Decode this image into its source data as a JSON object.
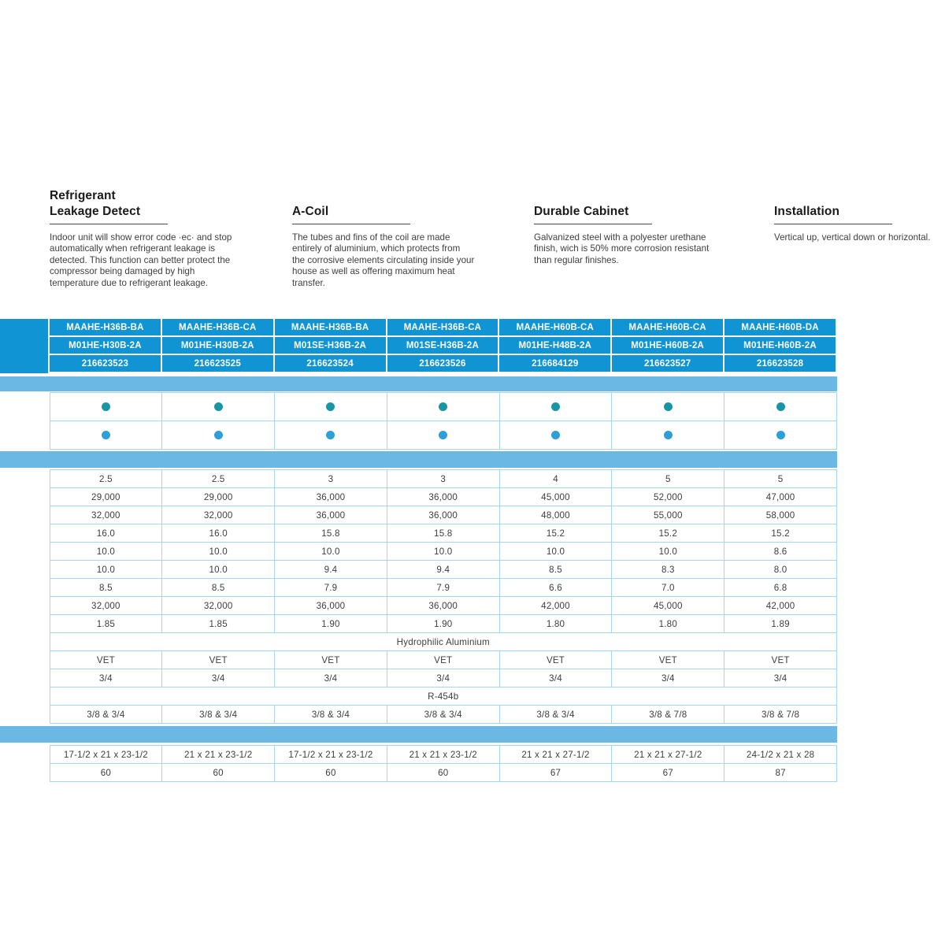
{
  "colors": {
    "header_blue": "#1094D4",
    "band_blue": "#6CB8E4",
    "grid_border": "#A8D4EE",
    "dot_teal": "#1896A6",
    "dot_blue": "#2E9FD9",
    "text_dark": "#3E3E3E"
  },
  "features": [
    {
      "title": "Refrigerant\nLeakage Detect",
      "body": "Indoor unit will show error code ·ec· and stop automatically when refrigerant leakage is detected. This function can better protect the compressor being damaged by high temperature due to refrigerant leakage."
    },
    {
      "title": "A-Coil",
      "body": "The tubes and fins of the coil are made entirely of aluminium, which protects from the corrosive elements circulating inside your house as well as offering maximum heat transfer."
    },
    {
      "title": "Durable Cabinet",
      "body": "Galvanized steel with a polyester urethane finish, wich is 50% more corrosion resistant than regular finishes."
    },
    {
      "title": "Installation",
      "body": "Vertical up, vertical down or horizontal."
    }
  ],
  "table": {
    "columns": [
      {
        "model": "MAAHE-H36B-BA",
        "coil": "M01HE-H30B-2A",
        "sku": "216623523"
      },
      {
        "model": "MAAHE-H36B-CA",
        "coil": "M01HE-H30B-2A",
        "sku": "216623525"
      },
      {
        "model": "MAAHE-H36B-BA",
        "coil": "M01SE-H36B-2A",
        "sku": "216623524"
      },
      {
        "model": "MAAHE-H36B-CA",
        "coil": "M01SE-H36B-2A",
        "sku": "216623526"
      },
      {
        "model": "MAAHE-H60B-CA",
        "coil": "M01HE-H48B-2A",
        "sku": "216684129"
      },
      {
        "model": "MAAHE-H60B-CA",
        "coil": "M01HE-H60B-2A",
        "sku": "216623527"
      },
      {
        "model": "MAAHE-H60B-DA",
        "coil": "M01HE-H60B-2A",
        "sku": "216623528"
      }
    ],
    "dot_rows": [
      {
        "color": "#1896A6"
      },
      {
        "color": "#2E9FD9"
      }
    ],
    "spec_rows": [
      [
        "2.5",
        "2.5",
        "3",
        "3",
        "4",
        "5",
        "5"
      ],
      [
        "29,000",
        "29,000",
        "36,000",
        "36,000",
        "45,000",
        "52,000",
        "47,000"
      ],
      [
        "32,000",
        "32,000",
        "36,000",
        "36,000",
        "48,000",
        "55,000",
        "58,000"
      ],
      [
        "16.0",
        "16.0",
        "15.8",
        "15.8",
        "15.2",
        "15.2",
        "15.2"
      ],
      [
        "10.0",
        "10.0",
        "10.0",
        "10.0",
        "10.0",
        "10.0",
        "8.6"
      ],
      [
        "10.0",
        "10.0",
        "9.4",
        "9.4",
        "8.5",
        "8.3",
        "8.0"
      ],
      [
        "8.5",
        "8.5",
        "7.9",
        "7.9",
        "6.6",
        "7.0",
        "6.8"
      ],
      [
        "32,000",
        "32,000",
        "36,000",
        "36,000",
        "42,000",
        "45,000",
        "42,000"
      ],
      [
        "1.85",
        "1.85",
        "1.90",
        "1.90",
        "1.80",
        "1.80",
        "1.89"
      ]
    ],
    "merged_coil_fin": "Hydrophilic Aluminium",
    "mid_rows": [
      [
        "VET",
        "VET",
        "VET",
        "VET",
        "VET",
        "VET",
        "VET"
      ],
      [
        "3/4",
        "3/4",
        "3/4",
        "3/4",
        "3/4",
        "3/4",
        "3/4"
      ]
    ],
    "merged_refrigerant_type": "R-454b",
    "line_set_row": [
      "3/8 & 3/4",
      "3/8 & 3/4",
      "3/8 & 3/4",
      "3/8 & 3/4",
      "3/8 & 3/4",
      "3/8 & 7/8",
      "3/8 & 7/8"
    ],
    "dims_row": [
      "17-1/2 x 21 x 23-1/2",
      "21 x 21 x 23-1/2",
      "17-1/2 x 21 x 23-1/2",
      "21 x 21 x 23-1/2",
      "21 x 21 x 27-1/2",
      "21 x 21 x 27-1/2",
      "24-1/2 x 21 x 28"
    ],
    "weight_row": [
      "60",
      "60",
      "60",
      "60",
      "67",
      "67",
      "87"
    ]
  }
}
